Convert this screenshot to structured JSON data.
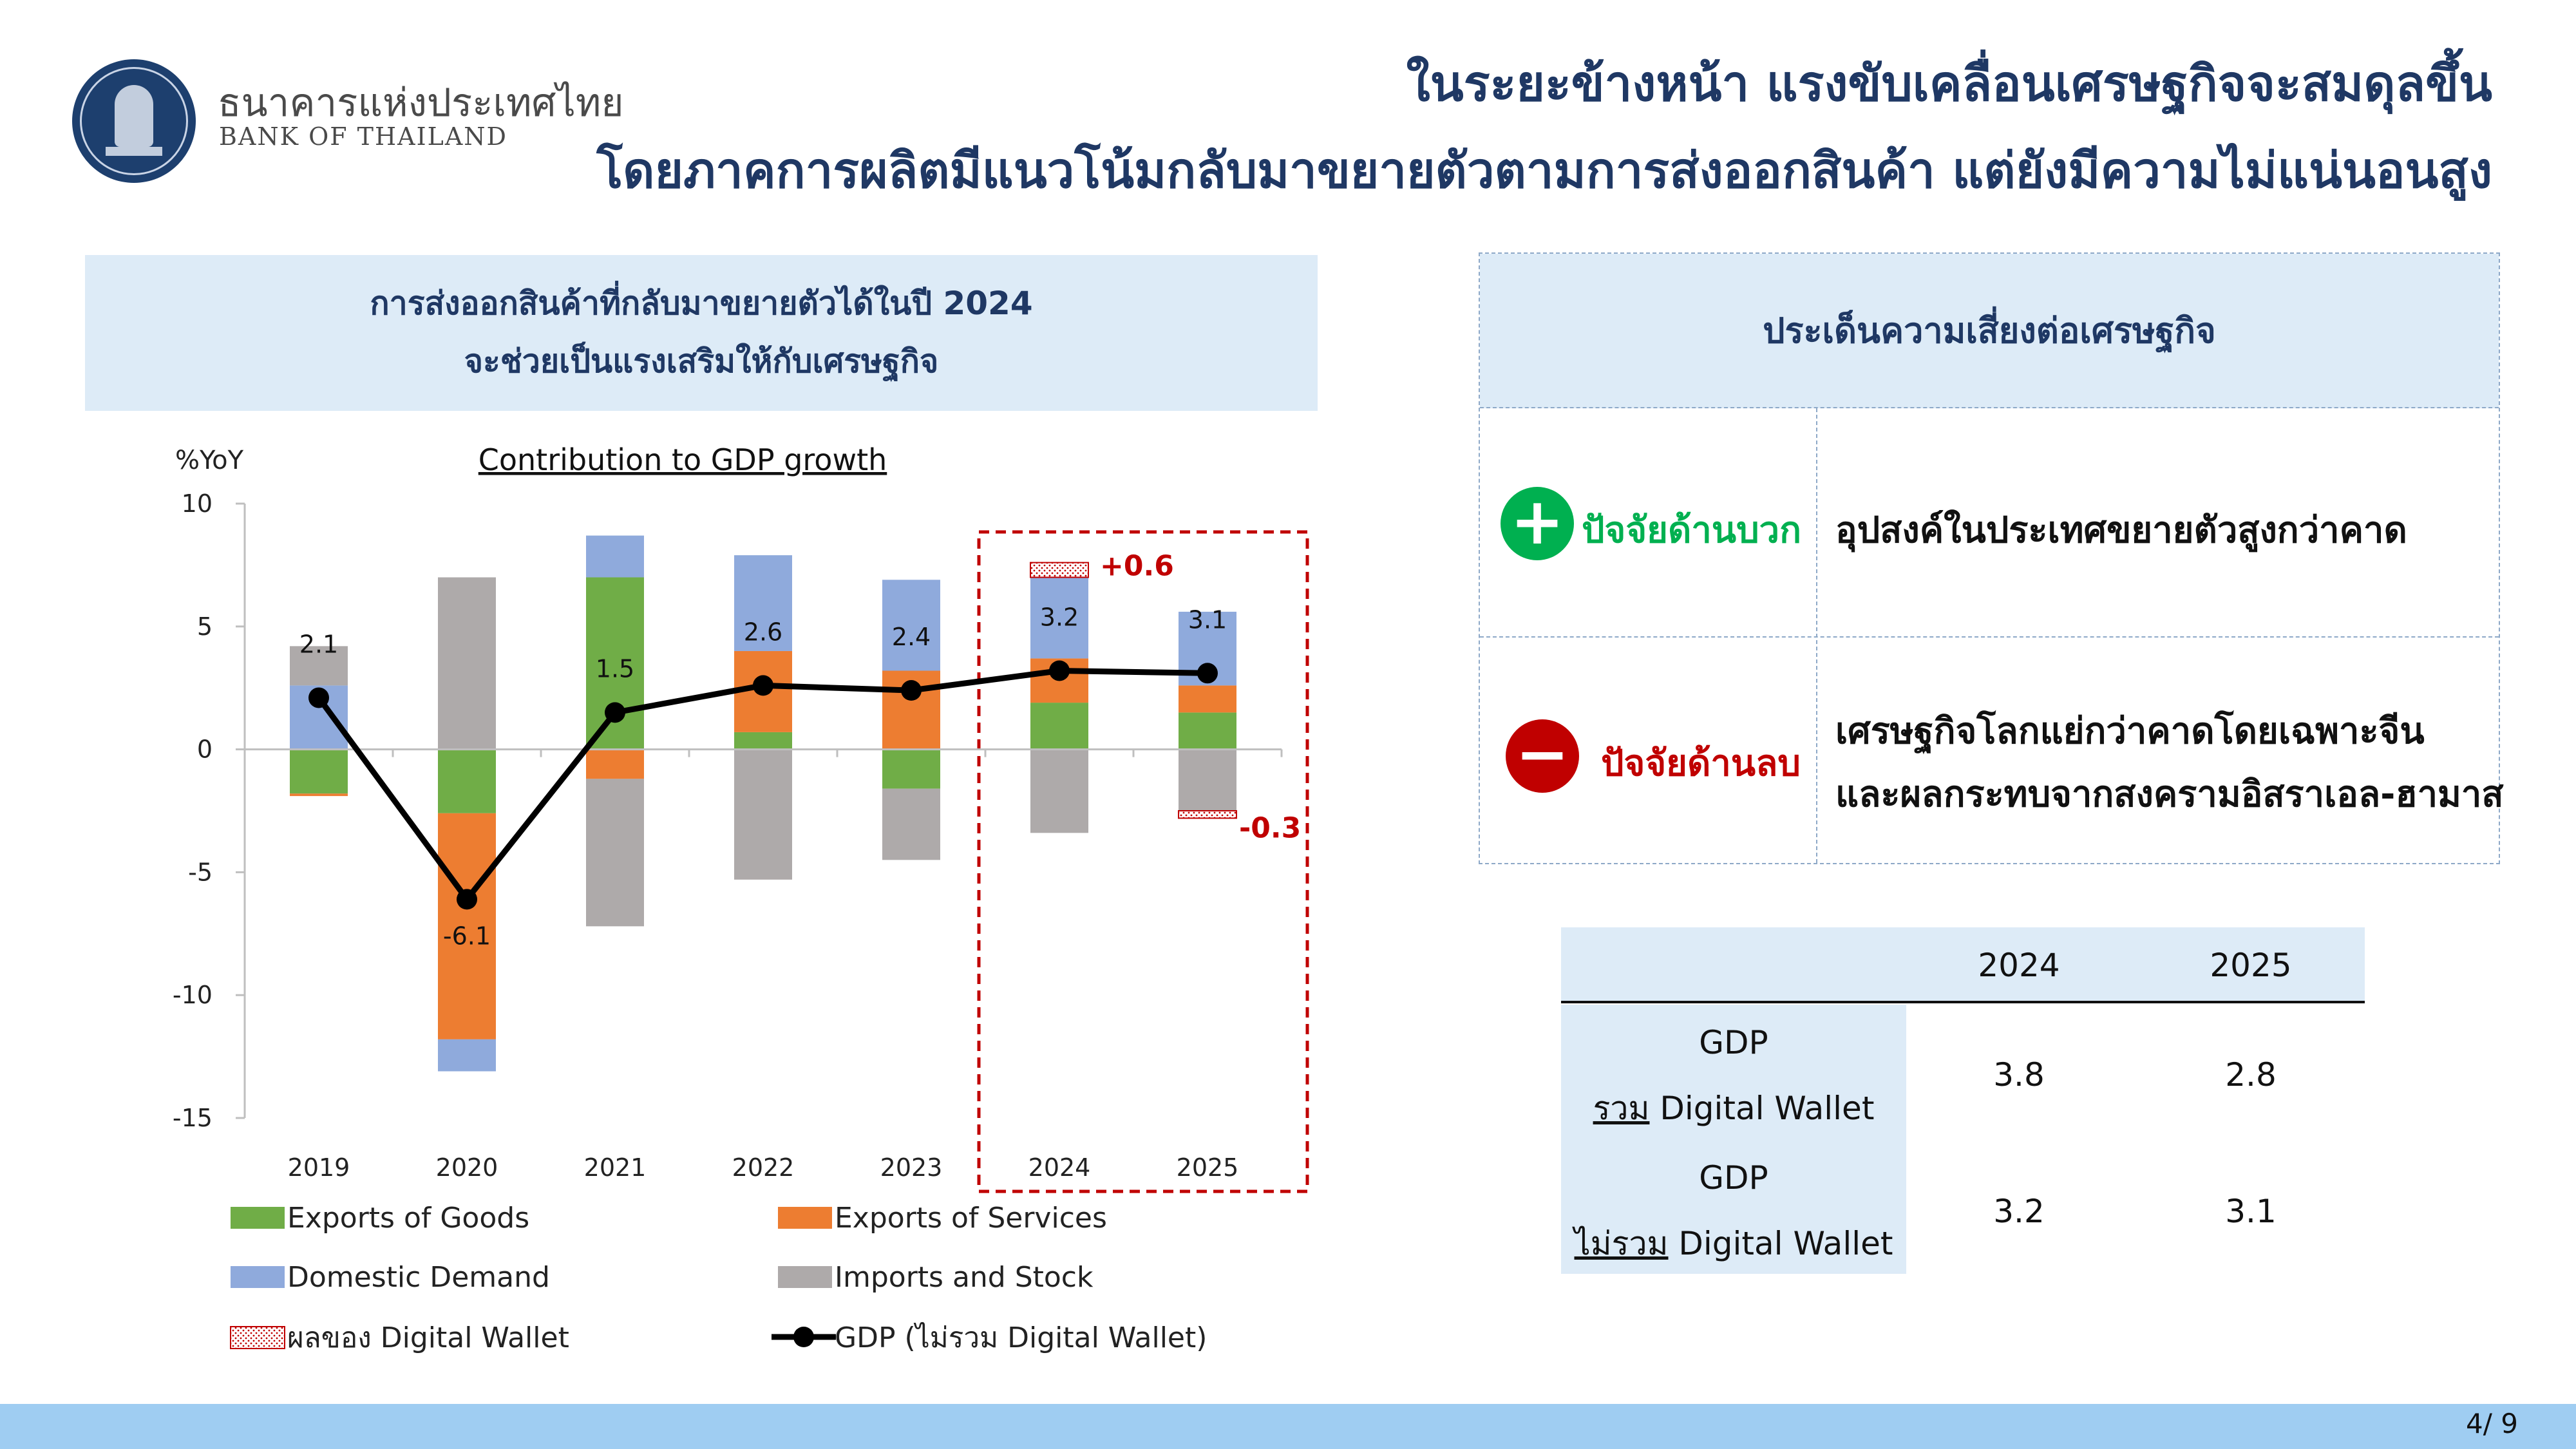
{
  "logo": {
    "name_th": "ธนาคารแห่งประเทศไทย",
    "name_en": "BANK OF THAILAND",
    "seal_icon": "bot-seal-icon"
  },
  "title": {
    "line1": "ในระยะข้างหน้า แรงขับเคลื่อนเศรษฐกิจจะสมดุลขึ้น",
    "line2": "โดยภาคการผลิตมีแนวโน้มกลับมาขยายตัวตามการส่งออกสินค้า แต่ยังมีความไม่แน่นอนสูง"
  },
  "left_panel": {
    "header_line1": "การส่งออกสินค้าที่กลับมาขยายตัวได้ในปี 2024",
    "header_line2": "จะช่วยเป็นแรงเสริมให้กับเศรษฐกิจ"
  },
  "chart_data": {
    "type": "bar",
    "stacked": true,
    "title": "Contribution to GDP growth",
    "ylabel": "%YoY",
    "ylim": [
      -15,
      10
    ],
    "yticks": [
      10,
      5,
      0,
      -5,
      -10,
      -15
    ],
    "categories": [
      "2019",
      "2020",
      "2021",
      "2022",
      "2023",
      "2024",
      "2025"
    ],
    "series": [
      {
        "name": "Exports of Goods",
        "color": "#70ad47",
        "values": [
          -1.8,
          -2.6,
          7.0,
          0.7,
          -1.6,
          1.9,
          1.5
        ]
      },
      {
        "name": "Exports of Services",
        "color": "#ed7d31",
        "values": [
          -0.1,
          -9.2,
          -1.2,
          3.3,
          3.2,
          1.8,
          1.1
        ]
      },
      {
        "name": "Domestic Demand",
        "color": "#8faadc",
        "values": [
          2.6,
          -1.3,
          1.7,
          3.9,
          3.7,
          3.3,
          3.0
        ]
      },
      {
        "name": "Imports and Stock",
        "color": "#aeaaaa",
        "values": [
          1.6,
          7.0,
          -6.0,
          -5.3,
          -2.9,
          -3.4,
          -2.5
        ]
      }
    ],
    "digital_wallet": {
      "name": "ผลของ Digital Wallet",
      "color": "#c00000",
      "values": [
        null,
        null,
        null,
        null,
        null,
        0.6,
        -0.3
      ],
      "labels": [
        "",
        "",
        "",
        "",
        "",
        "+0.6",
        "-0.3"
      ]
    },
    "gdp_line": {
      "name": "GDP (ไม่รวม Digital Wallet)",
      "color": "#000000",
      "values": [
        2.1,
        -6.1,
        1.5,
        2.6,
        2.4,
        3.2,
        3.1
      ],
      "labels": [
        "2.1",
        "-6.1",
        "1.5",
        "2.6",
        "2.4",
        "3.2",
        "3.1"
      ]
    },
    "highlight_categories": [
      "2024",
      "2025"
    ],
    "grid": false,
    "legend_placement": "bottom"
  },
  "risk_panel": {
    "header": "ประเด็นความเสี่ยงต่อเศรษฐกิจ",
    "positive_icon": "plus-circle-icon",
    "positive_label": "ปัจจัยด้านบวก",
    "positive_text": "อุปสงค์ในประเทศขยายตัวสูงกว่าคาด",
    "negative_icon": "minus-circle-icon",
    "negative_label": "ปัจจัยด้านลบ",
    "negative_text_line1": "เศรษฐกิจโลกแย่กว่าคาดโดยเฉพาะจีน",
    "negative_text_line2": "และผลกระทบจากสงครามอิสราเอล-ฮามาส",
    "positive_color": "#00b050",
    "negative_color": "#c00000"
  },
  "forecast_table": {
    "col_2024": "2024",
    "col_2025": "2025",
    "row1": {
      "label_line1": "GDP",
      "label_prefix": "รวม",
      "label_suffix": " Digital Wallet",
      "v2024": "3.8",
      "v2025": "2.8"
    },
    "row2": {
      "label_line1": "GDP",
      "label_prefix": "ไม่รวม",
      "label_suffix": " Digital Wallet",
      "v2024": "3.2",
      "v2025": "3.1"
    }
  },
  "footer": {
    "page": "4/ 9"
  }
}
